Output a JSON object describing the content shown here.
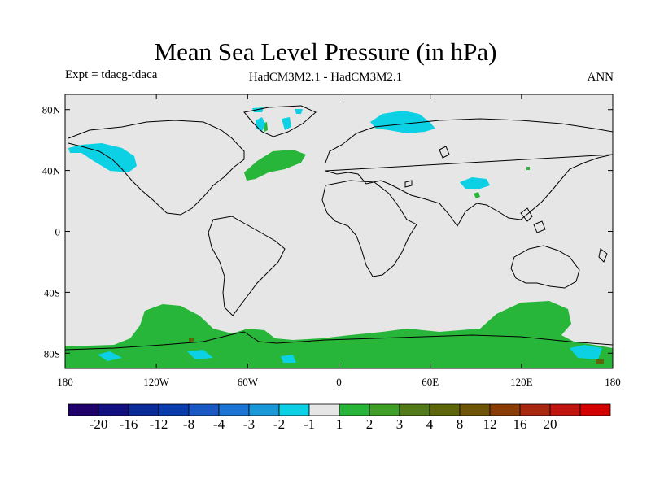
{
  "title": "Mean Sea Level Pressure (in hPa)",
  "experiment": "Expt = tdacg-tdaca",
  "model_comparison": "HadCM3M2.1 - HadCM3M2.1",
  "season": "ANN",
  "map": {
    "background_color": "#e6e6e6",
    "coastline_color": "#000000",
    "lat_ticks": [
      "80N",
      "40N",
      "0",
      "40S",
      "80S"
    ],
    "lon_ticks": [
      "180",
      "120W",
      "60W",
      "0",
      "60E",
      "120E",
      "180"
    ]
  },
  "colorbar": {
    "colors": [
      "#20006a",
      "#121080",
      "#0a2a98",
      "#0a3cae",
      "#1a58c4",
      "#1e74d4",
      "#1a98d8",
      "#0cd0e4",
      "#e6e6e6",
      "#28b63a",
      "#3e9e26",
      "#527a18",
      "#5e660a",
      "#6e5406",
      "#8a3c06",
      "#a82812",
      "#c01410",
      "#d40000"
    ],
    "labels": [
      "-20",
      "-16",
      "-12",
      "-8",
      "-4",
      "-3",
      "-2",
      "-1",
      "1",
      "2",
      "3",
      "4",
      "8",
      "12",
      "16",
      "20"
    ]
  },
  "field_colors": {
    "negative": "#0cd0e4",
    "positive": "#28b63a",
    "strong_positive": "#5e660a"
  }
}
